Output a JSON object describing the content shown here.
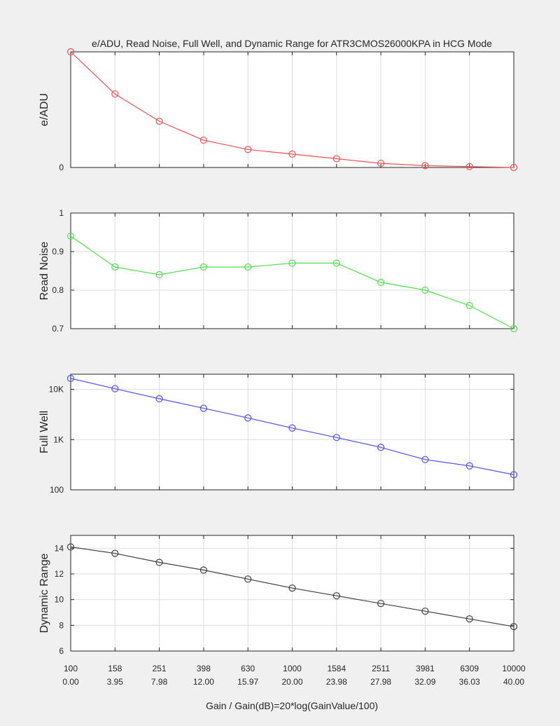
{
  "figure": {
    "title": "e/ADU, Read Noise, Full Well, and Dynamic Range for ATR3CMOS26000KPA in HCG Mode",
    "xlabel": "Gain / Gain(dB)=20*log(GainValue/100)",
    "background": "#f0f0f0"
  },
  "x_ticks": {
    "gain": [
      "100",
      "158",
      "251",
      "398",
      "630",
      "1000",
      "1584",
      "2511",
      "3981",
      "6309",
      "10000"
    ],
    "gain_db": [
      "0.00",
      "3.95",
      "7.98",
      "12.00",
      "15.97",
      "20.00",
      "23.98",
      "27.98",
      "32.09",
      "36.03",
      "40.00"
    ]
  },
  "chart_data": [
    {
      "type": "line",
      "id": "eadu",
      "ylabel": "e/ADU",
      "color": "#f05050",
      "scale": "linear",
      "ylim": [
        0,
        2.5
      ],
      "yticks": [
        0
      ],
      "ytick_labels": [
        "0"
      ],
      "grid": true,
      "x": [
        "100",
        "158",
        "251",
        "398",
        "630",
        "1000",
        "1584",
        "2511",
        "3981",
        "6309",
        "10000"
      ],
      "values": [
        2.5,
        1.59,
        1.0,
        0.59,
        0.39,
        0.29,
        0.19,
        0.09,
        0.04,
        0.02,
        0.0
      ]
    },
    {
      "type": "line",
      "id": "readnoise",
      "ylabel": "Read Noise",
      "color": "#4fe04f",
      "scale": "linear",
      "ylim": [
        0.7,
        1.0
      ],
      "yticks": [
        0.7,
        0.8,
        0.9,
        1.0
      ],
      "ytick_labels": [
        "0.7",
        "0.8",
        "0.9",
        "1"
      ],
      "grid": true,
      "x": [
        "100",
        "158",
        "251",
        "398",
        "630",
        "1000",
        "1584",
        "2511",
        "3981",
        "6309",
        "10000"
      ],
      "values": [
        0.94,
        0.86,
        0.84,
        0.86,
        0.86,
        0.87,
        0.87,
        0.82,
        0.8,
        0.76,
        0.7
      ]
    },
    {
      "type": "line",
      "id": "fullwell",
      "ylabel": "Full Well",
      "color": "#5050f0",
      "scale": "log",
      "ylim": [
        100,
        20000
      ],
      "yticks": [
        100,
        1000,
        10000
      ],
      "ytick_labels": [
        "100",
        "1K",
        "10K"
      ],
      "grid": true,
      "x": [
        "100",
        "158",
        "251",
        "398",
        "630",
        "1000",
        "1584",
        "2511",
        "3981",
        "6309",
        "10000"
      ],
      "values": [
        16500,
        10300,
        6500,
        4200,
        2700,
        1700,
        1100,
        700,
        400,
        300,
        200
      ]
    },
    {
      "type": "line",
      "id": "dynrange",
      "ylabel": "Dynamic Range",
      "color": "#404040",
      "scale": "linear",
      "ylim": [
        6,
        15
      ],
      "yticks": [
        6,
        8,
        10,
        12,
        14
      ],
      "ytick_labels": [
        "6",
        "8",
        "10",
        "12",
        "14"
      ],
      "grid": true,
      "x": [
        "100",
        "158",
        "251",
        "398",
        "630",
        "1000",
        "1584",
        "2511",
        "3981",
        "6309",
        "10000"
      ],
      "values": [
        14.1,
        13.6,
        12.9,
        12.3,
        11.6,
        10.9,
        10.3,
        9.7,
        9.1,
        8.5,
        7.9
      ]
    }
  ]
}
